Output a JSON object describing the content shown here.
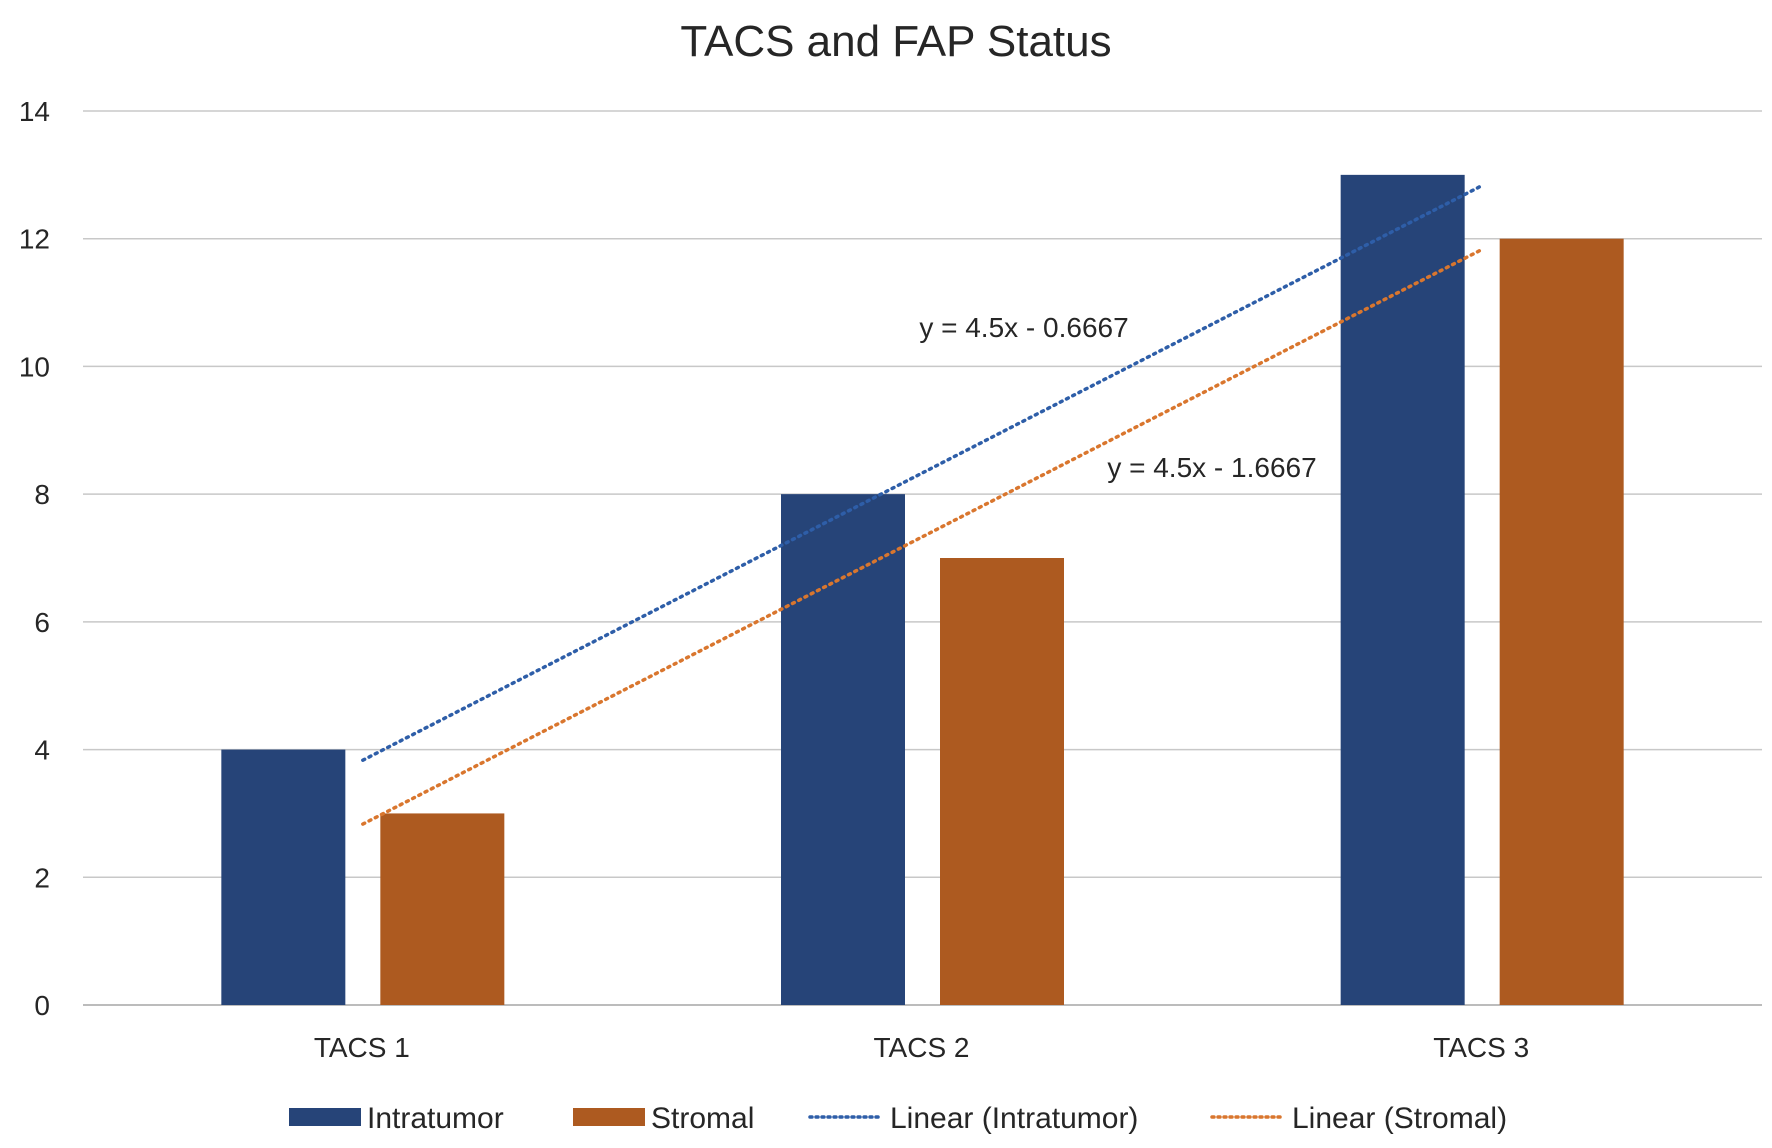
{
  "chart_data": {
    "type": "bar",
    "title": "TACS and FAP Status",
    "categories": [
      "TACS 1",
      "TACS 2",
      "TACS 3"
    ],
    "series": [
      {
        "name": "Intratumor",
        "values": [
          4,
          8,
          13
        ],
        "color": "#264478"
      },
      {
        "name": "Stromal",
        "values": [
          3,
          7,
          12
        ],
        "color": "#AD5A20"
      }
    ],
    "trendlines": [
      {
        "name": "Linear  (Intratumor)",
        "series": "Intratumor",
        "slope": 4.5,
        "intercept": -0.6667,
        "equation": "y = 4.5x - 0.6667",
        "color": "#2E5EA8"
      },
      {
        "name": "Linear  (Stromal)",
        "series": "Stromal",
        "slope": 4.5,
        "intercept": -1.6667,
        "equation": "y = 4.5x - 1.6667",
        "color": "#D9762E"
      }
    ],
    "ylim": [
      0,
      14
    ],
    "yticks": [
      0,
      2,
      4,
      6,
      8,
      10,
      12,
      14
    ],
    "xlabel": "",
    "ylabel": "",
    "grid": true,
    "legend": "bottom"
  }
}
